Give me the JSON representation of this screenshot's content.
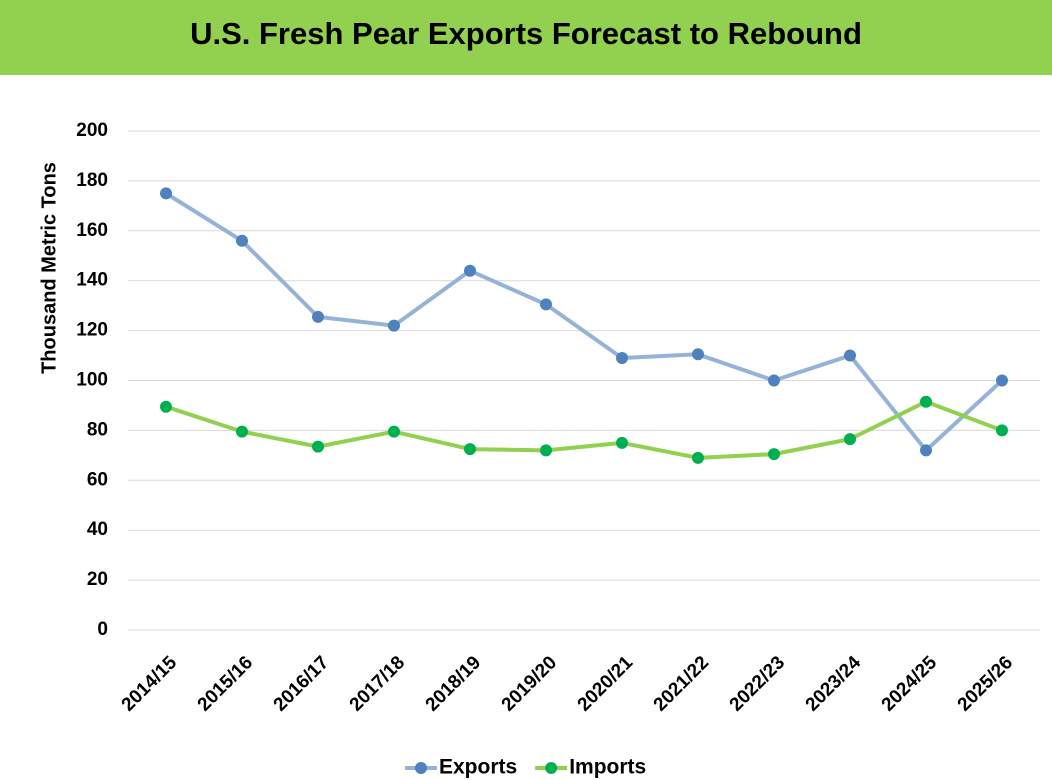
{
  "chart_data": {
    "type": "line",
    "title": "U.S. Fresh Pear Exports Forecast to Rebound",
    "y_label": "Thousand Metric Tons",
    "categories": [
      "2014/15",
      "2015/16",
      "2016/17",
      "2017/18",
      "2018/19",
      "2019/20",
      "2020/21",
      "2021/22",
      "2022/23",
      "2023/24",
      "2024/25",
      "2025/26"
    ],
    "series": [
      {
        "name": "Exports",
        "color": "#95b3d7",
        "marker_color": "#4f81bd",
        "values": [
          175,
          156,
          125.5,
          122,
          144,
          130.5,
          109,
          110.5,
          100,
          110,
          72,
          100
        ]
      },
      {
        "name": "Imports",
        "color": "#92d050",
        "marker_color": "#00b050",
        "values": [
          89.5,
          79.5,
          73.5,
          79.5,
          72.5,
          72,
          75,
          69,
          70.5,
          76.5,
          91.5,
          80
        ]
      }
    ],
    "ylim": [
      0,
      200
    ],
    "yticks": [
      0,
      20,
      40,
      60,
      80,
      100,
      120,
      140,
      160,
      180,
      200
    ],
    "grid": true,
    "legend": "bottom",
    "title_background": "#92d050"
  }
}
